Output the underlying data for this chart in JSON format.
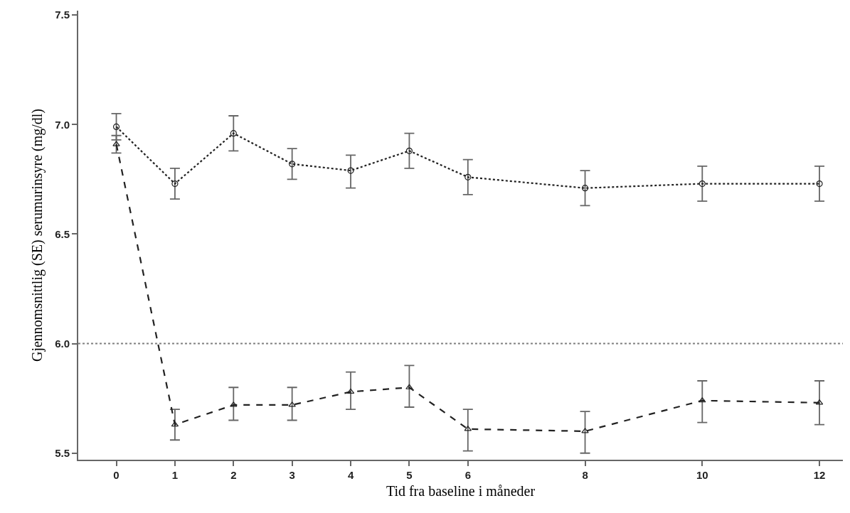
{
  "chart_data": {
    "type": "line",
    "xlabel": "Tid fra baseline i måneder",
    "ylabel": "Gjennomsnittlig (SE) serumurinsyre (mg/dl)",
    "x": [
      0,
      1,
      2,
      3,
      4,
      5,
      6,
      8,
      10,
      12
    ],
    "xlim": [
      -0.65,
      12.4
    ],
    "xticks": [
      0,
      1,
      2,
      3,
      4,
      5,
      6,
      8,
      10,
      12
    ],
    "ylim": [
      5.47,
      7.52
    ],
    "yticks": [
      {
        "value": 5.5,
        "label": "5.5"
      },
      {
        "value": 6.0,
        "label": "6.0"
      },
      {
        "value": 6.5,
        "label": "6.5"
      },
      {
        "value": 7.0,
        "label": "7.0"
      },
      {
        "value": 7.5,
        "label": "7.5"
      }
    ],
    "grid": false,
    "ref_lines": [
      {
        "axis": "y",
        "value": 6.0,
        "color": "#808080",
        "line_style": "dotted"
      }
    ],
    "series": [
      {
        "color": "#222222",
        "marker": "circle",
        "line_style": "dotted",
        "values": [
          6.99,
          6.73,
          6.96,
          6.82,
          6.79,
          6.88,
          6.76,
          6.71,
          6.73,
          6.73
        ],
        "errors": [
          [
            6.93,
            7.05
          ],
          [
            6.66,
            6.8
          ],
          [
            6.88,
            7.04
          ],
          [
            6.75,
            6.89
          ],
          [
            6.71,
            6.86
          ],
          [
            6.8,
            6.96
          ],
          [
            6.68,
            6.84
          ],
          [
            6.63,
            6.79
          ],
          [
            6.65,
            6.81
          ],
          [
            6.65,
            6.81
          ]
        ]
      },
      {
        "color": "#222222",
        "marker": "triangle",
        "line_style": "dashed",
        "values": [
          6.91,
          5.63,
          5.72,
          5.72,
          5.78,
          5.8,
          5.61,
          5.6,
          5.74,
          5.73
        ],
        "errors": [
          [
            6.87,
            6.95
          ],
          [
            5.56,
            5.7
          ],
          [
            5.65,
            5.8
          ],
          [
            5.65,
            5.8
          ],
          [
            5.7,
            5.87
          ],
          [
            5.71,
            5.9
          ],
          [
            5.51,
            5.7
          ],
          [
            5.5,
            5.69
          ],
          [
            5.64,
            5.83
          ],
          [
            5.63,
            5.83
          ]
        ]
      }
    ]
  }
}
